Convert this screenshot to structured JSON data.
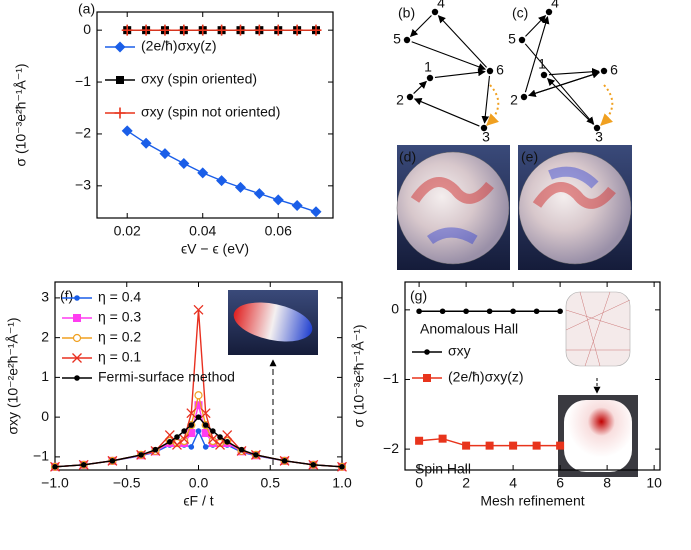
{
  "chart_data": [
    {
      "type": "line",
      "label": "(a)",
      "xlabel": "ϵV − ϵ (eV)",
      "ylabel": "σ (10⁻³e²ħ⁻¹Å⁻¹)",
      "x": [
        0.02,
        0.025,
        0.03,
        0.035,
        0.04,
        0.045,
        0.05,
        0.055,
        0.06,
        0.065,
        0.07
      ],
      "xlim": [
        0.012,
        0.0745
      ],
      "xticks": [
        0.02,
        0.04,
        0.06
      ],
      "ylim": [
        -3.62,
        0.35
      ],
      "yticks": [
        {
          "value": 0,
          "label": "0"
        },
        {
          "value": -1,
          "label": "−1"
        },
        {
          "value": -2,
          "label": "−2"
        },
        {
          "value": -3,
          "label": "−3"
        }
      ],
      "legend": "upper left",
      "series": [
        {
          "name": "(2e/ħ)σxy(z)",
          "color": "#1a5ee8",
          "marker": "diamond",
          "values": [
            -1.94,
            -2.18,
            -2.38,
            -2.57,
            -2.75,
            -2.9,
            -3.03,
            -3.15,
            -3.27,
            -3.38,
            -3.5
          ]
        },
        {
          "name": "σxy (spin oriented)",
          "color": "#000000",
          "marker": "square",
          "values": [
            0,
            0,
            0,
            0,
            0,
            0,
            0,
            0,
            0,
            0,
            0
          ]
        },
        {
          "name": "σxy  (spin not oriented)",
          "color": "#e8341c",
          "marker": "plus",
          "values": [
            0,
            0,
            0,
            0,
            0,
            0,
            0,
            0,
            0,
            0,
            0
          ]
        }
      ]
    },
    {
      "type": "line",
      "label": "(f)",
      "xlabel": "ϵF / t",
      "ylabel": "σxy (10⁻²e²ħ⁻¹Å⁻¹)",
      "x": [
        -1,
        -0.8,
        -0.6,
        -0.4,
        -0.3,
        -0.2,
        -0.15,
        -0.1,
        -0.05,
        0,
        0.05,
        0.1,
        0.15,
        0.2,
        0.3,
        0.4,
        0.6,
        0.8,
        1
      ],
      "xlim": [
        -1,
        1
      ],
      "xticks": [
        {
          "value": -1,
          "label": "−1.0"
        },
        {
          "value": -0.5,
          "label": "−0.5"
        },
        {
          "value": 0,
          "label": "0.0"
        },
        {
          "value": 0.5,
          "label": "0.5"
        },
        {
          "value": 1,
          "label": "1.0"
        }
      ],
      "ylim": [
        -1.33,
        3.4
      ],
      "yticks": [
        {
          "value": -1,
          "label": "−1"
        },
        0,
        1,
        2,
        3
      ],
      "legend": "upper left",
      "series": [
        {
          "name": "η = 0.4",
          "color": "#1a5ee8",
          "marker": "dot",
          "values": [
            -1.25,
            -1.2,
            -1.1,
            -0.97,
            -0.88,
            -0.7,
            -0.68,
            -0.7,
            -0.75,
            -0.35,
            -0.75,
            -0.7,
            -0.68,
            -0.7,
            -0.88,
            -0.97,
            -1.1,
            -1.2,
            -1.25
          ]
        },
        {
          "name": "η = 0.3",
          "color": "#ff3cf0",
          "marker": "square",
          "values": [
            -1.25,
            -1.2,
            -1.1,
            -0.96,
            -0.86,
            -0.65,
            -0.65,
            -0.65,
            -0.4,
            0.3,
            -0.4,
            -0.65,
            -0.65,
            -0.65,
            -0.86,
            -0.96,
            -1.1,
            -1.2,
            -1.25
          ]
        },
        {
          "name": "η = 0.2",
          "color": "#f0a020",
          "marker": "circle",
          "values": [
            -1.25,
            -1.2,
            -1.1,
            -0.95,
            -0.85,
            -0.6,
            -0.65,
            -0.6,
            -0.2,
            0.55,
            -0.2,
            -0.6,
            -0.65,
            -0.6,
            -0.85,
            -0.95,
            -1.1,
            -1.2,
            -1.25
          ]
        },
        {
          "name": "η = 0.1",
          "color": "#e83020",
          "marker": "cross",
          "values": [
            -1.25,
            -1.2,
            -1.1,
            -0.95,
            -0.85,
            -0.45,
            -0.7,
            -0.55,
            0.1,
            2.7,
            0.1,
            -0.55,
            -0.7,
            -0.45,
            -0.85,
            -0.95,
            -1.1,
            -1.2,
            -1.25
          ]
        },
        {
          "name": "Fermi-surface method",
          "color": "#000000",
          "marker": "dot",
          "values": [
            -1.25,
            -1.2,
            -1.1,
            -0.95,
            -0.82,
            -0.62,
            -0.5,
            -0.35,
            -0.2,
            0,
            -0.2,
            -0.35,
            -0.5,
            -0.62,
            -0.82,
            -0.95,
            -1.1,
            -1.2,
            -1.25
          ]
        }
      ]
    },
    {
      "type": "line",
      "label": "(g)",
      "xlabel": "Mesh refinement",
      "ylabel": "σ (10⁻³e²ħ⁻¹Å⁻¹)",
      "x": [
        0,
        1,
        2,
        3,
        4,
        5,
        6
      ],
      "xlim": [
        -0.6,
        10.25
      ],
      "xticks": [
        0,
        2,
        4,
        6,
        8,
        10
      ],
      "ylim": [
        -2.3,
        0.4
      ],
      "yticks": [
        0,
        {
          "value": -1,
          "label": "−1"
        },
        {
          "value": -2,
          "label": "−2"
        }
      ],
      "legend": "center left",
      "annotations": [
        {
          "text": "Anomalous Hall",
          "color": "#000000"
        },
        {
          "text": "Spin Hall",
          "color": "#e8341c"
        }
      ],
      "series": [
        {
          "name": "σxy",
          "color": "#000000",
          "marker": "dot",
          "values": [
            -0.02,
            -0.02,
            -0.02,
            -0.02,
            -0.02,
            -0.02,
            -0.02
          ]
        },
        {
          "name": "(2e/ħ)σxy(z)",
          "color": "#e8341c",
          "marker": "square",
          "values": [
            -1.88,
            -1.85,
            -1.95,
            -1.95,
            -1.95,
            -1.95,
            -1.95
          ]
        }
      ]
    }
  ],
  "diagrams": [
    {
      "label": "(b)",
      "nodes": [
        "1",
        "2",
        "3",
        "4",
        "5",
        "6"
      ]
    },
    {
      "label": "(c)",
      "nodes": [
        "1",
        "2",
        "3",
        "4",
        "5",
        "6"
      ]
    }
  ],
  "images": [
    {
      "label": "(d)"
    },
    {
      "label": "(e)"
    }
  ]
}
